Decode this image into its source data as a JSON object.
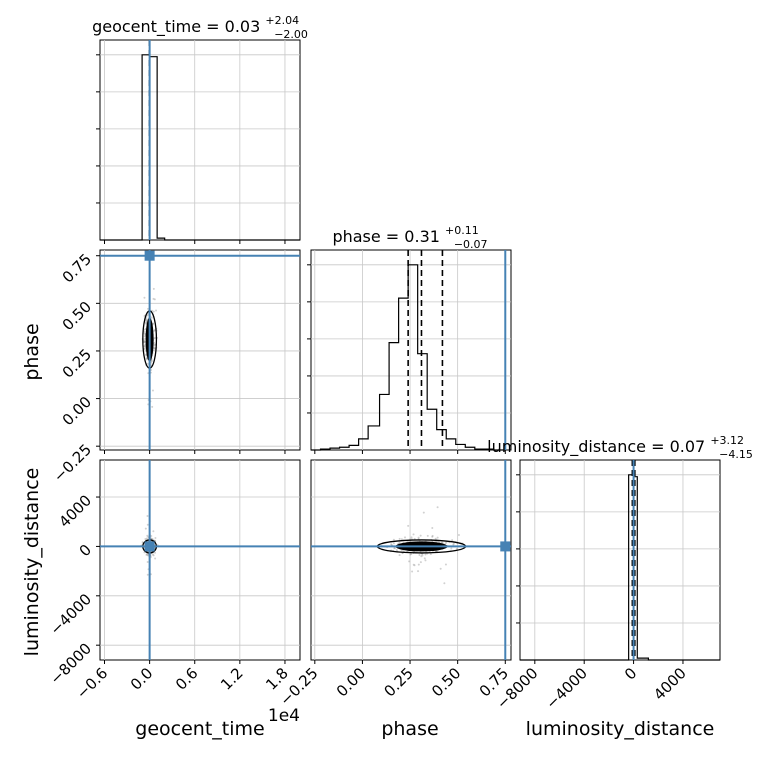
{
  "chart_data": {
    "type": "corner",
    "params": [
      "geocent_time",
      "phase",
      "luminosity_distance"
    ],
    "xlabels": [
      "geocent_time",
      "phase",
      "luminosity_distance"
    ],
    "ylabels": [
      "",
      "phase",
      "luminosity_distance"
    ],
    "offset_text": "1e4",
    "titles": [
      {
        "name": "geocent_time",
        "median": "0.03",
        "plus": "+2.04",
        "minus": "−2.00"
      },
      {
        "name": "phase",
        "median": "0.31",
        "plus": "+0.11",
        "minus": "−0.07"
      },
      {
        "name": "luminosity_distance",
        "median": "0.07",
        "plus": "+3.12",
        "minus": "−4.15"
      }
    ],
    "ranges": {
      "geocent_time": [
        -0.66,
        2.0
      ],
      "phase": [
        -0.27,
        0.78
      ],
      "luminosity_distance": [
        -9200,
        7000
      ]
    },
    "ticks": {
      "geocent_time": {
        "values": [
          -0.6,
          0.0,
          0.6,
          1.2,
          1.8
        ],
        "labels": [
          "−0.6",
          "0.0",
          "0.6",
          "1.2",
          "1.8"
        ]
      },
      "phase": {
        "values": [
          -0.25,
          0.0,
          0.25,
          0.5,
          0.75
        ],
        "labels": [
          "−0.25",
          "0.00",
          "0.25",
          "0.50",
          "0.75"
        ]
      },
      "luminosity_distance": {
        "values": [
          -8000,
          -4000,
          0,
          4000
        ],
        "labels": [
          "−8000",
          "−4000",
          "0",
          "4000"
        ]
      }
    },
    "truths": {
      "geocent_time": 0.0,
      "phase": 0.75,
      "luminosity_distance": 0
    },
    "truth_color": "#4682b4",
    "histograms": {
      "geocent_time": {
        "edges": [
          -0.66,
          -0.1,
          0.0,
          0.1,
          0.2,
          2.0
        ],
        "counts": [
          0,
          1.0,
          0.99,
          0.01,
          0
        ],
        "quantiles": [
          -0.0,
          0.0,
          0.0
        ],
        "max": 1.08
      },
      "phase": {
        "edges": [
          -0.27,
          -0.22,
          -0.17,
          -0.12,
          -0.07,
          -0.02,
          0.03,
          0.09,
          0.14,
          0.19,
          0.24,
          0.29,
          0.34,
          0.39,
          0.44,
          0.49,
          0.54,
          0.59,
          0.64,
          0.69,
          0.74
        ],
        "counts": [
          0,
          0.005,
          0.01,
          0.015,
          0.025,
          0.06,
          0.13,
          0.3,
          0.58,
          0.82,
          1.0,
          0.52,
          0.22,
          0.11,
          0.06,
          0.03,
          0.015,
          0.005,
          0.005,
          0
        ],
        "quantiles": [
          0.24,
          0.31,
          0.42
        ],
        "max": 1.08
      },
      "luminosity_distance": {
        "edges": [
          -9200,
          -400,
          0,
          300,
          1200,
          7000
        ],
        "counts": [
          0,
          1.0,
          0.99,
          0.01,
          0
        ],
        "quantiles": [
          -100,
          0,
          100
        ],
        "max": 1.08
      }
    },
    "grid": true
  }
}
